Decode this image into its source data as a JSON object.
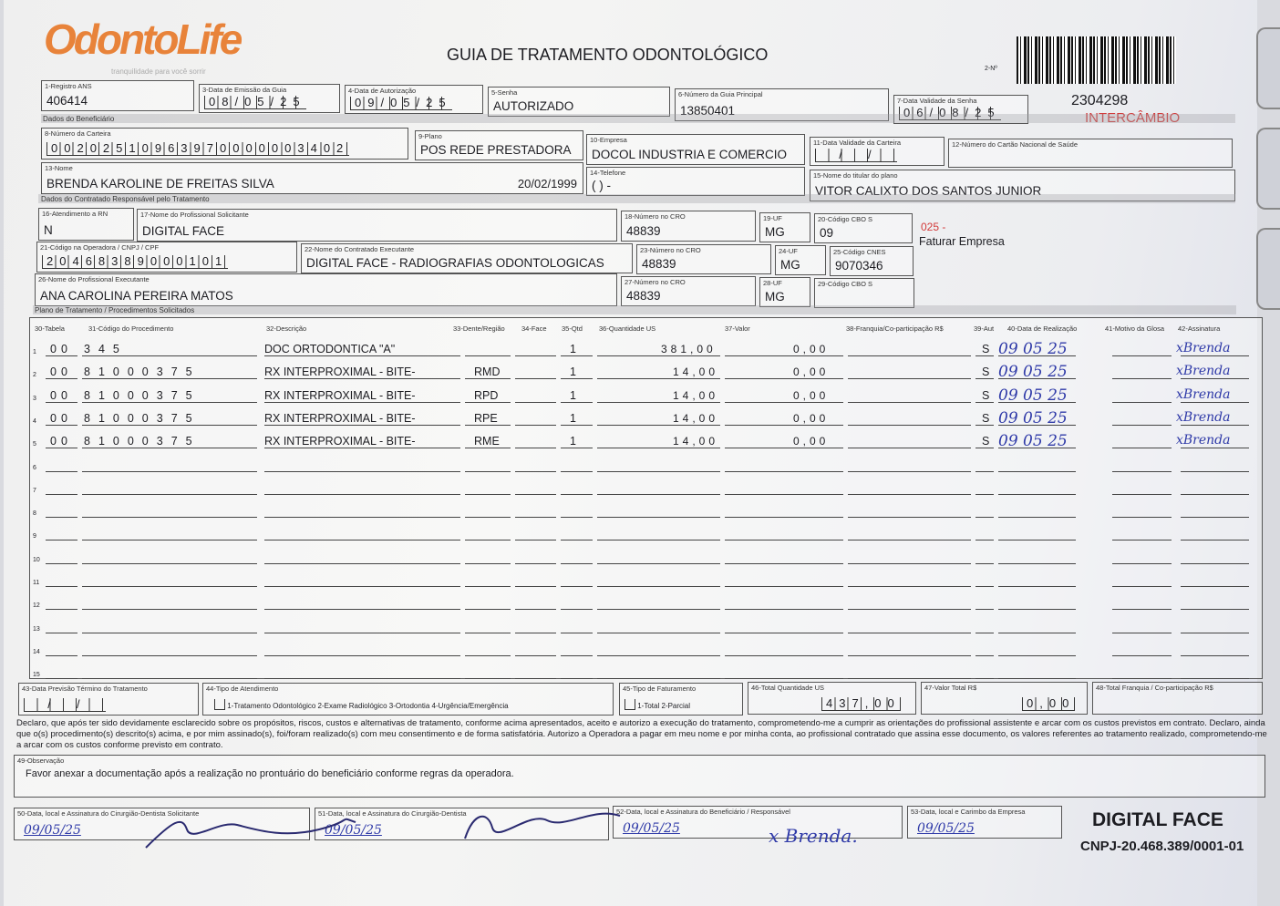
{
  "logo": {
    "brand": "OdontoLife",
    "tagline": "tranquilidade para você sorrir",
    "color": "#e8833a"
  },
  "title": "GUIA DE TRATAMENTO ODONTOLÓGICO",
  "guide_number_label": "2-Nº",
  "guide_number": "2304298",
  "intercambio": "INTERCÂMBIO",
  "header": {
    "f1": {
      "label": "1-Registro ANS",
      "value": "406414"
    },
    "f3": {
      "label": "3-Data de Emissão da Guia",
      "value": "08/05/25"
    },
    "f4": {
      "label": "4-Data de Autorização",
      "value": "09/05/25"
    },
    "f5": {
      "label": "5-Senha",
      "value": "AUTORIZADO"
    },
    "f6": {
      "label": "6-Número da Guia Principal",
      "value": "13850401"
    },
    "f7": {
      "label": "7-Data Validade da Senha",
      "value": "06/08/25"
    }
  },
  "beneficiary": {
    "section": "Dados do Beneficiário",
    "f8": {
      "label": "8-Número da Carteira",
      "value": "00202510963970000003402"
    },
    "f9": {
      "label": "9-Plano",
      "value": "POS REDE PRESTADORA"
    },
    "f10": {
      "label": "10-Empresa",
      "value": "DOCOL INDUSTRIA E COMERCIO"
    },
    "f11": {
      "label": "11-Data Validade da Carteira",
      "value": "  /  /  "
    },
    "f12": {
      "label": "12-Número do Cartão Nacional de Saúde",
      "value": ""
    },
    "f13": {
      "label": "13-Nome",
      "value": "BRENDA KAROLINE DE FREITAS SILVA",
      "birth": "20/02/1999"
    },
    "f14": {
      "label": "14-Telefone",
      "value": "(  )     -    "
    },
    "f15": {
      "label": "15-Nome do titular do plano",
      "value": "VITOR CALIXTO DOS SANTOS JUNIOR"
    }
  },
  "contractor": {
    "section": "Dados do Contratado Responsável pelo Tratamento",
    "f16": {
      "label": "16-Atendimento a RN",
      "value": "N"
    },
    "f17": {
      "label": "17-Nome do Profissional Solicitante",
      "value": "DIGITAL FACE"
    },
    "f18": {
      "label": "18-Número no CRO",
      "value": "48839"
    },
    "f19": {
      "label": "19-UF",
      "value": "MG"
    },
    "f20": {
      "label": "20-Código CBO S",
      "value": "09"
    },
    "note_code": "025 -",
    "note_text": "Faturar Empresa",
    "f21": {
      "label": "21-Código na Operadora / CNPJ / CPF",
      "value": "20468389000101"
    },
    "f22": {
      "label": "22-Nome do Contratado Executante",
      "value": "DIGITAL FACE - RADIOGRAFIAS ODONTOLOGICAS"
    },
    "f23": {
      "label": "23-Número no CRO",
      "value": "48839"
    },
    "f24": {
      "label": "24-UF",
      "value": "MG"
    },
    "f25": {
      "label": "25-Código CNES",
      "value": "9070346"
    },
    "f26": {
      "label": "26-Nome do Profissional Executante",
      "value": "ANA CAROLINA PEREIRA MATOS"
    },
    "f27": {
      "label": "27-Número no CRO",
      "value": "48839"
    },
    "f28": {
      "label": "28-UF",
      "value": "MG"
    },
    "f29": {
      "label": "29-Código CBO S",
      "value": ""
    }
  },
  "plan": {
    "section": "Plano de Tratamento / Procedimentos Solicitados",
    "columns": [
      "30-Tabela",
      "31-Código do Procedimento",
      "32-Descrição",
      "33-Dente/Região",
      "34-Face",
      "35-Qtd",
      "36-Quantidade US",
      "37-Valor",
      "38-Franquia/Co-participação R$",
      "39-Aut",
      "40-Data de Realização",
      "41-Motivo da Glosa",
      "42-Assinatura"
    ],
    "rows": [
      {
        "n": "1",
        "tabela": "00",
        "codigo": "345",
        "descricao": "DOC ORTODONTICA \"A\"",
        "dente": "",
        "face": "",
        "qtd": "1",
        "us": "381,00",
        "valor": "0,00",
        "franquia": "",
        "aut": "S",
        "data": "09 05 25",
        "glosa": "",
        "assinatura": "xBrenda"
      },
      {
        "n": "2",
        "tabela": "00",
        "codigo": "81000375",
        "descricao": "RX INTERPROXIMAL - BITE-",
        "dente": "RMD",
        "face": "",
        "qtd": "1",
        "us": "14,00",
        "valor": "0,00",
        "franquia": "",
        "aut": "S",
        "data": "09 05 25",
        "glosa": "",
        "assinatura": "xBrenda"
      },
      {
        "n": "3",
        "tabela": "00",
        "codigo": "81000375",
        "descricao": "RX INTERPROXIMAL - BITE-",
        "dente": "RPD",
        "face": "",
        "qtd": "1",
        "us": "14,00",
        "valor": "0,00",
        "franquia": "",
        "aut": "S",
        "data": "09 05 25",
        "glosa": "",
        "assinatura": "xBrenda"
      },
      {
        "n": "4",
        "tabela": "00",
        "codigo": "81000375",
        "descricao": "RX INTERPROXIMAL - BITE-",
        "dente": "RPE",
        "face": "",
        "qtd": "1",
        "us": "14,00",
        "valor": "0,00",
        "franquia": "",
        "aut": "S",
        "data": "09 05 25",
        "glosa": "",
        "assinatura": "xBrenda"
      },
      {
        "n": "5",
        "tabela": "00",
        "codigo": "81000375",
        "descricao": "RX INTERPROXIMAL - BITE-",
        "dente": "RME",
        "face": "",
        "qtd": "1",
        "us": "14,00",
        "valor": "0,00",
        "franquia": "",
        "aut": "S",
        "data": "09 05 25",
        "glosa": "",
        "assinatura": "xBrenda"
      },
      {
        "n": "6"
      },
      {
        "n": "7"
      },
      {
        "n": "8"
      },
      {
        "n": "9"
      },
      {
        "n": "10"
      },
      {
        "n": "11"
      },
      {
        "n": "12"
      },
      {
        "n": "13"
      },
      {
        "n": "14"
      },
      {
        "n": "15"
      }
    ]
  },
  "totals": {
    "f43": {
      "label": "43-Data Previsão Término do Tratamento",
      "value": "  /  /  "
    },
    "f44": {
      "label": "44-Tipo de Atendimento",
      "options": "1-Tratamento Odontológico  2-Exame Radiológico  3-Ortodontia  4-Urgência/Emergência"
    },
    "f45": {
      "label": "45-Tipo de Faturamento",
      "options": "1-Total  2-Parcial"
    },
    "f46": {
      "label": "46-Total Quantidade US",
      "value": "437,00"
    },
    "f47": {
      "label": "47-Valor Total R$",
      "value": "0,00"
    },
    "f48": {
      "label": "48-Total Franquia / Co-participação R$",
      "value": ""
    }
  },
  "declaration": "Declaro, que após ter sido devidamente esclarecido sobre os propósitos, riscos, custos e alternativas de tratamento, conforme acima apresentados, aceito e autorizo a execução do tratamento, comprometendo-me a cumprir as orientações do profissional assistente e arcar com os custos previstos em contrato. Declaro, ainda que o(s) procedimento(s) descrito(s) acima, e por mim assinado(s), foi/foram realizado(s) com meu consentimento e de forma satisfatória. Autorizo a Operadora a pagar em meu nome e por minha conta, ao profissional contratado que assina esse documento, os valores referentes ao tratamento realizado, comprometendo-me a arcar com os custos conforme previsto em contrato.",
  "observation": {
    "label": "49-Observação",
    "value": "Favor anexar a documentação após a realização no prontuário do beneficiário conforme regras da operadora."
  },
  "signatures": {
    "f50": {
      "label": "50-Data, local e Assinatura do Cirurgião-Dentista Solicitante",
      "date": "09/05/25"
    },
    "f51": {
      "label": "51-Data, local e Assinatura do Cirurgião-Dentista",
      "date": "09/05/25"
    },
    "f52": {
      "label": "52-Data, local e Assinatura do Beneficiário / Responsável",
      "date": "09/05/25",
      "sign": "x Brenda."
    },
    "f53": {
      "label": "53-Data, local e Carimbo da Empresa",
      "date": "09/05/25"
    }
  },
  "stamp": {
    "name": "DIGITAL FACE",
    "cnpj": "CNPJ-20.468.389/0001-01"
  },
  "colors": {
    "handwriting": "#2f3aa8",
    "red": "#d23a3a"
  }
}
